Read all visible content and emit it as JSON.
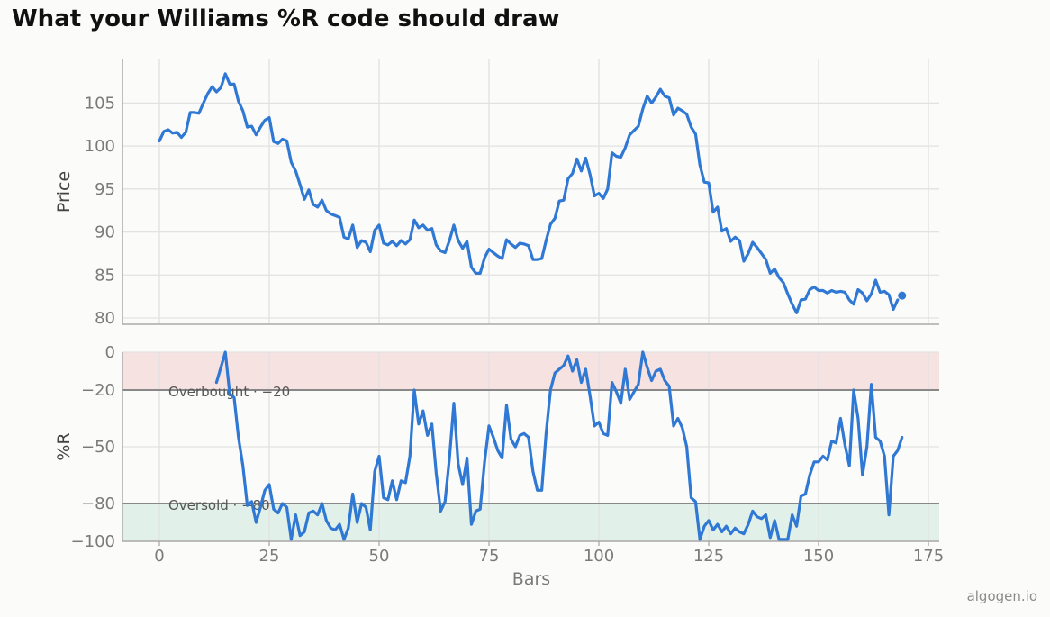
{
  "chart_data": {
    "type": "line",
    "title": "What your Williams %R code should draw",
    "xlabel": "Bars",
    "xlim": [
      -8,
      177
    ],
    "xticks": [
      0,
      25,
      50,
      75,
      100,
      125,
      150,
      175
    ],
    "grid": true,
    "color_line": "#2f78d4",
    "panels": [
      {
        "name": "price",
        "ylabel": "Price",
        "ylim": [
          79.5,
          109.5
        ],
        "yticks": [
          80,
          85,
          90,
          95,
          100,
          105
        ],
        "series": [
          {
            "x_start": 0,
            "values": [
              100.6,
              101.7,
              101.9,
              101.5,
              101.6,
              101.0,
              101.6,
              103.9,
              103.9,
              103.8,
              105.0,
              106.1,
              106.9,
              106.3,
              106.8,
              108.4,
              107.2,
              107.2,
              105.2,
              104.1,
              102.2,
              102.3,
              101.3,
              102.2,
              103.0,
              103.3,
              100.5,
              100.3,
              100.8,
              100.6,
              98.1,
              97.1,
              95.5,
              93.8,
              94.9,
              93.2,
              92.9,
              93.7,
              92.5,
              92.1,
              91.9,
              91.7,
              89.4,
              89.2,
              90.8,
              88.2,
              89.0,
              88.8,
              87.7,
              90.2,
              90.8,
              88.7,
              88.5,
              88.9,
              88.4,
              89.0,
              88.6,
              89.1,
              91.4,
              90.5,
              90.8,
              90.2,
              90.4,
              88.5,
              87.8,
              87.6,
              89.0,
              90.8,
              89.0,
              88.1,
              88.9,
              85.9,
              85.2,
              85.2,
              87.0,
              88.0,
              87.6,
              87.2,
              86.9,
              89.1,
              88.6,
              88.2,
              88.7,
              88.6,
              88.4,
              86.8,
              86.8,
              86.9,
              89.0,
              90.9,
              91.6,
              93.6,
              93.7,
              96.2,
              96.8,
              98.5,
              97.1,
              98.6,
              96.7,
              94.2,
              94.5,
              93.9,
              95.0,
              99.2,
              98.8,
              98.7,
              99.8,
              101.3,
              101.8,
              102.3,
              104.3,
              105.8,
              105.0,
              105.7,
              106.6,
              105.8,
              105.6,
              103.6,
              104.4,
              104.1,
              103.7,
              102.2,
              101.4,
              97.8,
              95.8,
              95.7,
              92.3,
              92.9,
              90.1,
              90.4,
              88.9,
              89.4,
              89.0,
              86.6,
              87.5,
              88.8,
              88.2,
              87.5,
              86.8,
              85.2,
              85.7,
              84.7,
              84.1,
              82.8,
              81.6,
              80.6,
              82.1,
              82.2,
              83.3,
              83.6,
              83.2,
              83.2,
              82.9,
              83.2,
              83.0,
              83.1,
              83.0,
              82.1,
              81.6,
              83.3,
              82.9,
              82.0,
              82.8,
              84.4,
              83.0,
              83.1,
              82.7,
              81.0,
              82.1
            ]
          }
        ],
        "last_point": {
          "x": 169,
          "y": 82.6
        }
      },
      {
        "name": "williams-r",
        "ylabel": "%R",
        "ylim": [
          -100,
          0
        ],
        "yticks": [
          0,
          -20,
          -50,
          -80,
          -100
        ],
        "series": [
          {
            "x_start": 13,
            "values": [
              -16,
              -8,
              0,
              -22,
              -24,
              -45,
              -60,
              -81,
              -79,
              -90,
              -82,
              -73,
              -70,
              -83,
              -85,
              -80,
              -82,
              -99,
              -86,
              -97,
              -95,
              -85,
              -84,
              -86,
              -80,
              -89,
              -93,
              -94,
              -91,
              -99,
              -93,
              -75,
              -90,
              -80,
              -82,
              -94,
              -63,
              -55,
              -77,
              -78,
              -68,
              -78,
              -68,
              -69,
              -55,
              -20,
              -38,
              -31,
              -44,
              -38,
              -64,
              -84,
              -79,
              -56,
              -27,
              -59,
              -70,
              -56,
              -91,
              -84,
              -83,
              -58,
              -39,
              -45,
              -52,
              -56,
              -28,
              -46,
              -50,
              -44,
              -43,
              -45,
              -63,
              -73,
              -73,
              -43,
              -20,
              -11,
              -9,
              -7,
              -2,
              -10,
              -4,
              -16,
              -9,
              -23,
              -39,
              -37,
              -43,
              -44,
              -16,
              -21,
              -27,
              -9,
              -25,
              -21,
              -17,
              0,
              -8,
              -15,
              -10,
              -9,
              -15,
              -18,
              -39,
              -35,
              -40,
              -50,
              -77,
              -79,
              -99,
              -92,
              -89,
              -94,
              -91,
              -95,
              -92,
              -96,
              -93,
              -95,
              -96,
              -91,
              -84,
              -87,
              -88,
              -86,
              -98,
              -89,
              -99,
              -99,
              -99,
              -86,
              -92,
              -76,
              -75,
              -65,
              -58,
              -58,
              -55,
              -57,
              -47,
              -48,
              -35,
              -49,
              -60,
              -20,
              -35,
              -65,
              -50,
              -17,
              -45,
              -47,
              -55,
              -86,
              -55,
              -52,
              -45
            ]
          }
        ],
        "zones": [
          {
            "name": "overbought",
            "from": 0,
            "to": -20,
            "color": "#f7e2e2"
          },
          {
            "name": "oversold",
            "from": -80,
            "to": -100,
            "color": "#e1f1ea"
          }
        ],
        "reference_lines": [
          {
            "y": -20,
            "label": "Overbought · −20"
          },
          {
            "y": -80,
            "label": "Oversold · −80"
          }
        ]
      }
    ]
  },
  "watermark": "algogen.io"
}
